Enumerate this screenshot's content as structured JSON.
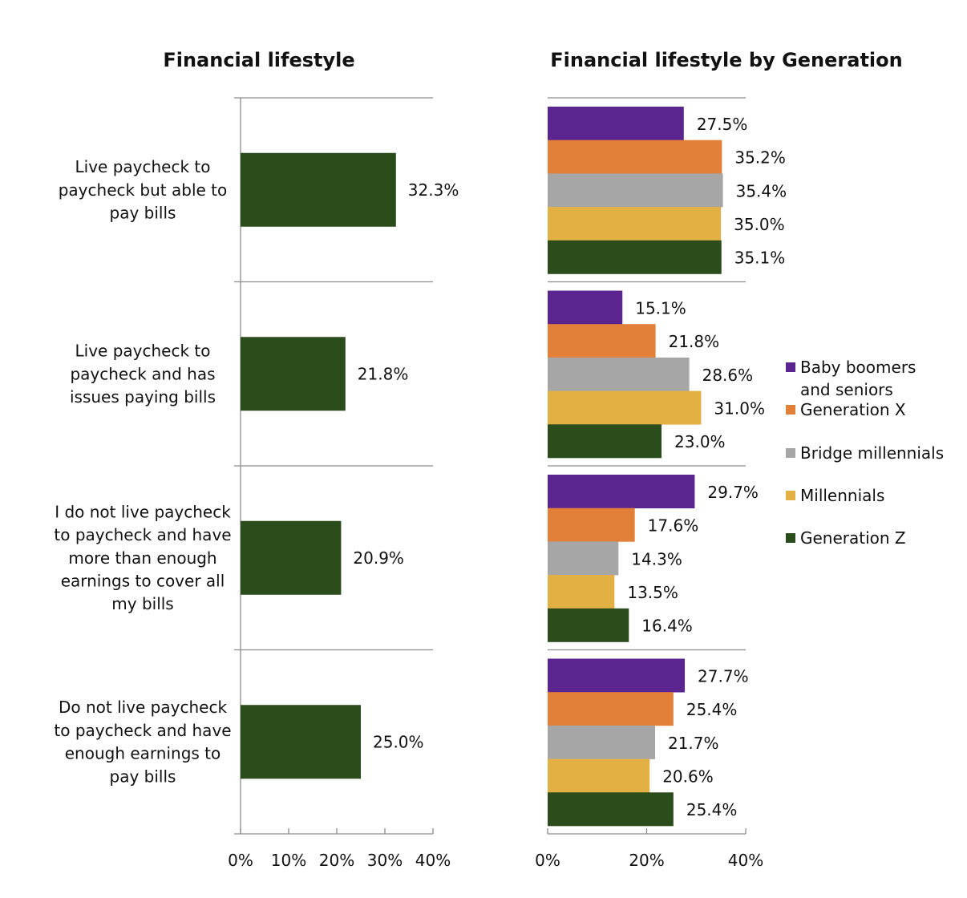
{
  "colors": {
    "Baby boomers and seniors": "#5B2590",
    "Generation X": "#E2803A",
    "Bridge millennials": "#A6A6A6",
    "Millennials": "#E2B043",
    "Generation Z": "#2B4C1B",
    "axis": "#8c8c8c"
  },
  "chart_data": [
    {
      "type": "bar",
      "orientation": "horizontal",
      "title": "Financial lifestyle",
      "categories": [
        [
          "Live paycheck to",
          "paycheck but able to",
          "pay bills"
        ],
        [
          "Live paycheck to",
          "paycheck and has",
          "issues paying bills"
        ],
        [
          "I do not live paycheck",
          "to paycheck and have",
          "more than enough",
          "earnings to cover all",
          "my bills"
        ],
        [
          "Do not live paycheck",
          "to paycheck and have",
          "enough earnings to",
          "pay bills"
        ]
      ],
      "values": [
        32.3,
        21.8,
        20.9,
        25.0
      ],
      "data_labels": [
        "32.3%",
        "21.8%",
        "20.9%",
        "25.0%"
      ],
      "xlim": [
        0,
        40
      ],
      "xticks": [
        "0%",
        "10%",
        "20%",
        "30%",
        "40%"
      ],
      "xlabel": "",
      "ylabel": ""
    },
    {
      "type": "bar",
      "orientation": "horizontal",
      "title": "Financial lifestyle by Generation",
      "categories": [
        "Live paycheck to paycheck but able to pay bills",
        "Live paycheck to paycheck and has issues paying bills",
        "I do not live paycheck to paycheck and have more than enough earnings to cover all my bills",
        "Do not live paycheck to paycheck and have enough earnings to pay bills"
      ],
      "series": [
        {
          "name": "Baby boomers and seniors",
          "legend_lines": [
            "Baby boomers",
            "and seniors"
          ],
          "values": [
            27.5,
            15.1,
            29.7,
            27.7
          ],
          "labels": [
            "27.5%",
            "15.1%",
            "29.7%",
            "27.7%"
          ]
        },
        {
          "name": "Generation X",
          "legend_lines": [
            "Generation X"
          ],
          "values": [
            35.2,
            21.8,
            17.6,
            25.4
          ],
          "labels": [
            "35.2%",
            "21.8%",
            "17.6%",
            "25.4%"
          ]
        },
        {
          "name": "Bridge millennials",
          "legend_lines": [
            "Bridge millennials"
          ],
          "values": [
            35.4,
            28.6,
            14.3,
            21.7
          ],
          "labels": [
            "35.4%",
            "28.6%",
            "14.3%",
            "21.7%"
          ]
        },
        {
          "name": "Millennials",
          "legend_lines": [
            "Millennials"
          ],
          "values": [
            35.0,
            31.0,
            13.5,
            20.6
          ],
          "labels": [
            "35.0%",
            "31.0%",
            "13.5%",
            "20.6%"
          ]
        },
        {
          "name": "Generation Z",
          "legend_lines": [
            "Generation Z"
          ],
          "values": [
            35.1,
            23.0,
            16.4,
            25.4
          ],
          "labels": [
            "35.1%",
            "23.0%",
            "16.4%",
            "25.4%"
          ]
        }
      ],
      "xlim": [
        0,
        40
      ],
      "xticks": [
        "0%",
        "20%",
        "40%"
      ],
      "legend": "right"
    }
  ]
}
